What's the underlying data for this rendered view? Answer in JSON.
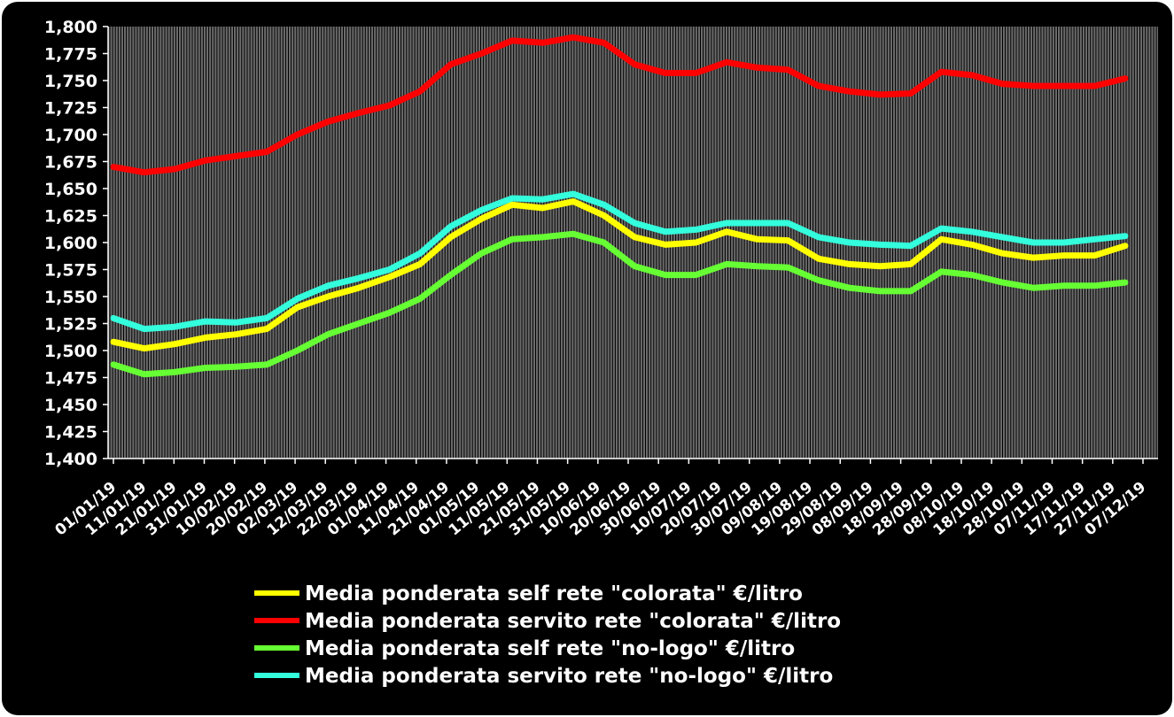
{
  "colors": {
    "background": "#000000",
    "plot_background": "#6b6b6b",
    "grid": "#000000",
    "text": "#ffffff"
  },
  "chart_data": {
    "type": "line",
    "title": "",
    "xlabel": "",
    "ylabel": "",
    "ylim": [
      1.4,
      1.8
    ],
    "ytick_step": 0.025,
    "ytick_labels": [
      "1,400",
      "1,425",
      "1,450",
      "1,475",
      "1,500",
      "1,525",
      "1,550",
      "1,575",
      "1,600",
      "1,625",
      "1,650",
      "1,675",
      "1,700",
      "1,725",
      "1,750",
      "1,775",
      "1,800"
    ],
    "grid": true,
    "grid_style": "vertical",
    "legend_position": "bottom",
    "x_tick_labels": [
      "01/01/19",
      "11/01/19",
      "21/01/19",
      "31/01/19",
      "10/02/19",
      "20/02/19",
      "02/03/19",
      "12/03/19",
      "22/03/19",
      "01/04/19",
      "11/04/19",
      "21/04/19",
      "01/05/19",
      "11/05/19",
      "21/05/19",
      "31/05/19",
      "10/06/19",
      "20/06/19",
      "30/06/19",
      "10/07/19",
      "20/07/19",
      "30/07/19",
      "09/08/19",
      "19/08/19",
      "29/08/19",
      "08/09/19",
      "18/09/19",
      "28/09/19",
      "08/10/19",
      "18/10/19",
      "28/10/19",
      "07/11/19",
      "17/11/19",
      "27/11/19",
      "07/12/19"
    ],
    "x": [
      "01/01/19",
      "11/01/19",
      "21/01/19",
      "31/01/19",
      "10/02/19",
      "20/02/19",
      "02/03/19",
      "12/03/19",
      "22/03/19",
      "01/04/19",
      "11/04/19",
      "21/04/19",
      "01/05/19",
      "11/05/19",
      "21/05/19",
      "31/05/19",
      "10/06/19",
      "20/06/19",
      "30/06/19",
      "10/07/19",
      "20/07/19",
      "30/07/19",
      "09/08/19",
      "19/08/19",
      "29/08/19",
      "08/09/19",
      "18/09/19",
      "28/09/19",
      "08/10/19",
      "18/10/19",
      "28/10/19",
      "07/11/19",
      "17/11/19",
      "27/11/19"
    ],
    "series": [
      {
        "name": "Media ponderata self rete \"colorata\" €/litro",
        "color": "#ffff00",
        "values": [
          1.508,
          1.502,
          1.506,
          1.512,
          1.515,
          1.52,
          1.54,
          1.55,
          1.558,
          1.568,
          1.58,
          1.605,
          1.622,
          1.635,
          1.632,
          1.638,
          1.625,
          1.605,
          1.598,
          1.6,
          1.61,
          1.603,
          1.602,
          1.585,
          1.58,
          1.578,
          1.58,
          1.603,
          1.598,
          1.59,
          1.586,
          1.588,
          1.588,
          1.597
        ]
      },
      {
        "name": "Media ponderata servito rete \"colorata\" €/litro",
        "color": "#ff0000",
        "values": [
          1.67,
          1.665,
          1.668,
          1.676,
          1.68,
          1.684,
          1.7,
          1.712,
          1.72,
          1.727,
          1.74,
          1.765,
          1.775,
          1.787,
          1.785,
          1.79,
          1.785,
          1.765,
          1.757,
          1.757,
          1.767,
          1.762,
          1.76,
          1.745,
          1.74,
          1.737,
          1.738,
          1.758,
          1.755,
          1.747,
          1.745,
          1.745,
          1.745,
          1.752
        ]
      },
      {
        "name": "Media ponderata self rete \"no-logo\" €/litro",
        "color": "#66ff33",
        "values": [
          1.487,
          1.478,
          1.48,
          1.484,
          1.485,
          1.487,
          1.5,
          1.515,
          1.525,
          1.535,
          1.548,
          1.57,
          1.59,
          1.603,
          1.605,
          1.608,
          1.6,
          1.578,
          1.57,
          1.57,
          1.58,
          1.578,
          1.577,
          1.565,
          1.558,
          1.555,
          1.555,
          1.573,
          1.57,
          1.563,
          1.558,
          1.56,
          1.56,
          1.563
        ]
      },
      {
        "name": "Media ponderata servito rete \"no-logo\" €/litro",
        "color": "#33ffdd",
        "values": [
          1.53,
          1.52,
          1.522,
          1.527,
          1.526,
          1.53,
          1.548,
          1.56,
          1.567,
          1.575,
          1.59,
          1.615,
          1.63,
          1.641,
          1.64,
          1.645,
          1.635,
          1.618,
          1.61,
          1.612,
          1.618,
          1.618,
          1.618,
          1.605,
          1.6,
          1.598,
          1.597,
          1.613,
          1.61,
          1.605,
          1.6,
          1.6,
          1.603,
          1.606
        ]
      }
    ]
  }
}
